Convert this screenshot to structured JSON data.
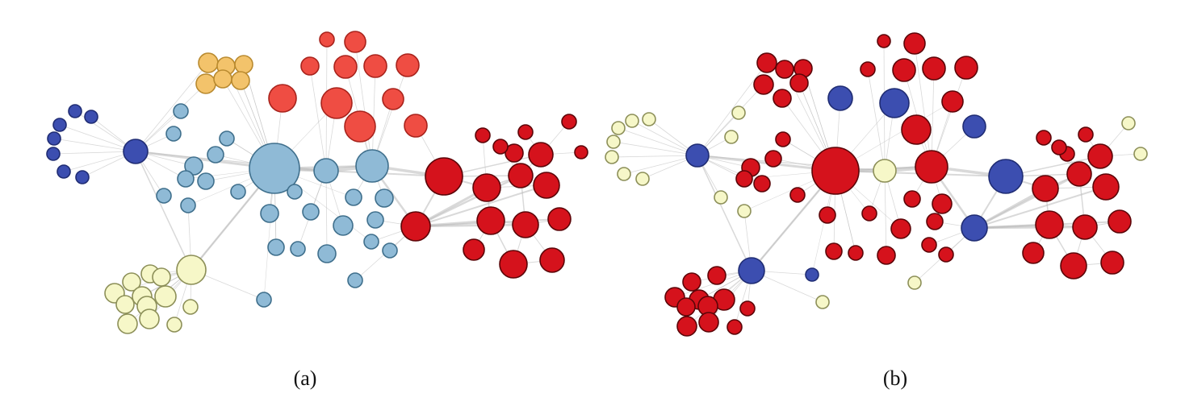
{
  "panels": [
    {
      "id": "a",
      "caption": "(a)"
    },
    {
      "id": "b",
      "caption": "(b)"
    }
  ],
  "palette": {
    "dark_blue": "#3c4eb0",
    "light_blue": "#8fbad6",
    "orange": "#f3c36b",
    "salmon": "#ef4d43",
    "red": "#d5121c",
    "pale_yellow": "#f6f7c8"
  },
  "node_role": "network-node"
}
